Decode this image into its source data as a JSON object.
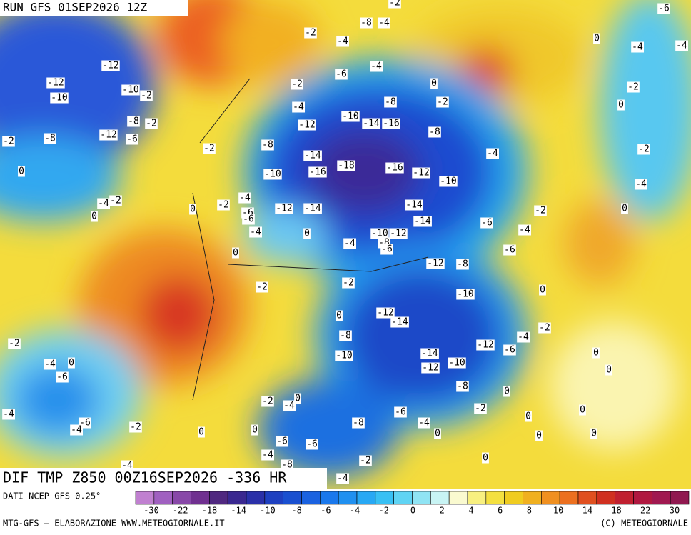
{
  "header": {
    "run": "RUN GFS 01SEP2026 12Z",
    "field": "DIF TMP Z850 00Z16SEP2026 -336 HR",
    "source": "DATI NCEP GFS 0.25°",
    "credit": "MTG-GFS — ELABORAZIONE WWW.METEOGIORNALE.IT",
    "copyright": "(C) METEOGIORNALE"
  },
  "colorbar": {
    "colors": [
      "#c080d0",
      "#a060c0",
      "#8848a8",
      "#703090",
      "#502880",
      "#3a2890",
      "#2a30a8",
      "#1e40c0",
      "#1a50d0",
      "#1a62e0",
      "#1a78ec",
      "#2090f0",
      "#28a8f4",
      "#38c0f4",
      "#60d4f4",
      "#90e4f4",
      "#c8f4f4",
      "#fafad0",
      "#f8f080",
      "#f4e040",
      "#f0cc20",
      "#f0b020",
      "#f09020",
      "#ec7020",
      "#e05020",
      "#d03020",
      "#c02030",
      "#b01840",
      "#a01850",
      "#901850"
    ],
    "ticks": [
      -30,
      -22,
      -18,
      -14,
      -10,
      -8,
      -6,
      -4,
      -2,
      0,
      2,
      4,
      6,
      8,
      10,
      14,
      18,
      22,
      30
    ]
  },
  "map": {
    "contour_labels": [
      -2,
      -6,
      -2,
      -8,
      -4,
      -4,
      0,
      -4,
      -4,
      -12,
      -12,
      -4,
      -6,
      0,
      -2,
      -10,
      -2,
      -10,
      -2,
      -8,
      -2,
      -4,
      0,
      -10,
      -14,
      -16,
      -8,
      -2,
      -12,
      -6,
      -12,
      -8,
      -8,
      -2,
      -8,
      -2,
      -2,
      -14,
      -4,
      -18,
      -16,
      -16,
      -12,
      -10,
      0,
      -10,
      -4,
      -4,
      -2,
      -4,
      0,
      -2,
      -14,
      -12,
      -14,
      -6,
      -2,
      0,
      0,
      -14,
      -6,
      -6,
      -4,
      -4,
      0,
      -10,
      -12,
      -4,
      -8,
      -6,
      -6,
      0,
      -12,
      -8,
      -2,
      -2,
      0,
      -10,
      -12,
      -14,
      0,
      -2,
      -4,
      -8,
      -2,
      -12,
      -6,
      0,
      -14,
      -10,
      -4,
      0,
      -6,
      0,
      -10,
      -12,
      -8,
      0,
      -2,
      -4,
      0,
      -2,
      -6,
      0,
      -4,
      0,
      -6,
      -4,
      -4,
      -8,
      -2,
      0,
      0,
      0,
      0,
      0,
      -6,
      -6,
      -4,
      -2,
      -8,
      0,
      -4,
      -4
    ]
  }
}
